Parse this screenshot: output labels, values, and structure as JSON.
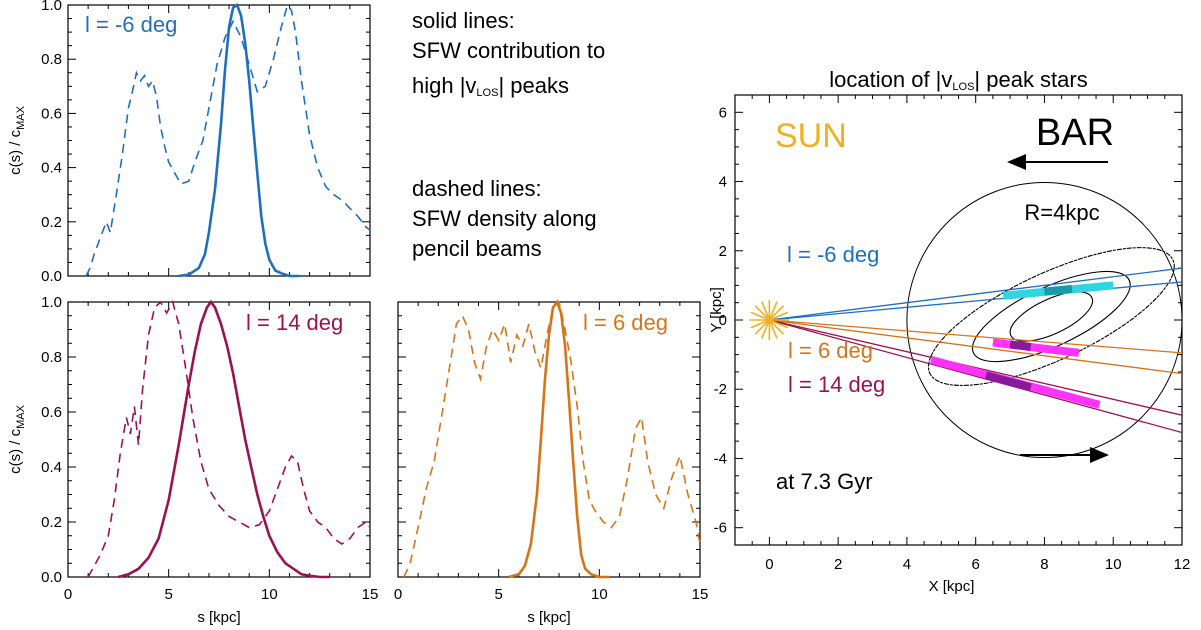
{
  "annotations": {
    "solid_title": "solid lines:",
    "solid_line2": "SFW contribution to",
    "solid_line3a": "high |v",
    "solid_line3sub": "LOS",
    "solid_line3b": "| peaks",
    "dashed_title": "dashed lines:",
    "dashed_line2": "SFW density along",
    "dashed_line3": "pencil beams"
  },
  "colors": {
    "blue": "#1f6fbf",
    "crimson": "#9b1250",
    "orange": "#d6741a",
    "sun": "#f0b020",
    "cyan": "#2fd6e0",
    "teal": "#1a9aa8",
    "magenta": "#ff33ff",
    "purple": "#8b1a9b"
  },
  "chart_data": [
    {
      "type": "line",
      "panel": "top-left",
      "label": "l = -6 deg",
      "xlabel": "",
      "ylabel": "c(s) / c_MAX",
      "xlim": [
        0,
        15
      ],
      "ylim": [
        0,
        1
      ],
      "yticks": [
        "0.0",
        "0.2",
        "0.4",
        "0.6",
        "0.8",
        "1.0"
      ],
      "series": [
        {
          "style": "dashed",
          "x": [
            0.9,
            1.1,
            1.3,
            1.6,
            1.9,
            2.1,
            2.4,
            2.7,
            3.0,
            3.2,
            3.4,
            3.6,
            3.8,
            4.0,
            4.2,
            4.4,
            4.6,
            4.8,
            5.0,
            5.3,
            5.6,
            6.0,
            6.3,
            6.7,
            7.0,
            7.4,
            7.8,
            8.2,
            8.6,
            9.0,
            9.4,
            9.8,
            10.2,
            10.6,
            10.9,
            11.1,
            11.3,
            11.6,
            12.0,
            12.4,
            12.8,
            13.2,
            13.6,
            14.0,
            14.4,
            14.8,
            15.0
          ],
          "y": [
            0.0,
            0.03,
            0.08,
            0.14,
            0.2,
            0.16,
            0.3,
            0.45,
            0.62,
            0.68,
            0.75,
            0.72,
            0.74,
            0.7,
            0.72,
            0.66,
            0.55,
            0.48,
            0.42,
            0.38,
            0.34,
            0.35,
            0.42,
            0.5,
            0.62,
            0.78,
            0.88,
            0.94,
            0.88,
            0.78,
            0.68,
            0.7,
            0.8,
            0.92,
            1.0,
            0.98,
            0.9,
            0.72,
            0.52,
            0.4,
            0.33,
            0.3,
            0.28,
            0.25,
            0.22,
            0.18,
            0.17
          ]
        },
        {
          "style": "solid",
          "x": [
            5.5,
            6.0,
            6.5,
            6.8,
            7.0,
            7.3,
            7.6,
            7.8,
            8.0,
            8.2,
            8.4,
            8.6,
            8.8,
            9.0,
            9.2,
            9.4,
            9.6,
            9.8,
            10.0,
            10.3,
            10.6,
            11.0,
            11.5
          ],
          "y": [
            0.0,
            0.005,
            0.03,
            0.08,
            0.16,
            0.32,
            0.56,
            0.76,
            0.92,
            0.99,
            1.0,
            0.96,
            0.86,
            0.72,
            0.55,
            0.38,
            0.22,
            0.12,
            0.06,
            0.02,
            0.01,
            0.0,
            0.0
          ]
        }
      ]
    },
    {
      "type": "line",
      "panel": "bottom-left",
      "label": "l = 14 deg",
      "xlabel": "s [kpc]",
      "ylabel": "c(s) / c_MAX",
      "xlim": [
        0,
        15
      ],
      "ylim": [
        0,
        1
      ],
      "xticks": [
        "0",
        "5",
        "10",
        "15"
      ],
      "yticks": [
        "0.0",
        "0.2",
        "0.4",
        "0.6",
        "0.8",
        "1.0"
      ],
      "series": [
        {
          "style": "dashed",
          "x": [
            1.0,
            1.3,
            1.6,
            2.0,
            2.3,
            2.6,
            2.9,
            3.1,
            3.3,
            3.5,
            3.7,
            4.0,
            4.3,
            4.6,
            4.9,
            5.2,
            5.5,
            5.8,
            6.2,
            6.6,
            7.0,
            7.5,
            8.0,
            8.5,
            9.0,
            9.5,
            10.0,
            10.4,
            10.8,
            11.1,
            11.4,
            11.7,
            12.0,
            12.4,
            12.8,
            13.2,
            13.6,
            14.0,
            14.4,
            14.8,
            15.0
          ],
          "y": [
            0.0,
            0.04,
            0.08,
            0.15,
            0.28,
            0.45,
            0.58,
            0.52,
            0.62,
            0.48,
            0.68,
            0.88,
            0.98,
            1.0,
            0.96,
            1.0,
            0.92,
            0.78,
            0.58,
            0.42,
            0.32,
            0.26,
            0.22,
            0.2,
            0.18,
            0.19,
            0.24,
            0.32,
            0.4,
            0.44,
            0.42,
            0.32,
            0.24,
            0.2,
            0.18,
            0.14,
            0.12,
            0.14,
            0.18,
            0.2,
            0.18
          ]
        },
        {
          "style": "solid",
          "x": [
            2.5,
            3.0,
            3.5,
            4.0,
            4.5,
            5.0,
            5.5,
            6.0,
            6.3,
            6.6,
            6.9,
            7.1,
            7.3,
            7.6,
            7.9,
            8.2,
            8.5,
            8.8,
            9.1,
            9.4,
            9.7,
            10.0,
            10.4,
            10.8,
            11.2,
            11.6,
            12.0,
            12.5,
            13.0
          ],
          "y": [
            0.0,
            0.01,
            0.03,
            0.07,
            0.14,
            0.28,
            0.48,
            0.7,
            0.82,
            0.92,
            0.98,
            1.0,
            0.98,
            0.92,
            0.84,
            0.74,
            0.62,
            0.5,
            0.4,
            0.3,
            0.22,
            0.15,
            0.09,
            0.05,
            0.03,
            0.01,
            0.005,
            0.0,
            0.0
          ]
        }
      ]
    },
    {
      "type": "line",
      "panel": "bottom-middle",
      "label": "l = 6 deg",
      "xlabel": "s [kpc]",
      "ylabel": "",
      "xlim": [
        0,
        15
      ],
      "ylim": [
        0,
        1
      ],
      "xticks": [
        "0",
        "5",
        "10",
        "15"
      ],
      "series": [
        {
          "style": "dashed",
          "x": [
            0.3,
            0.6,
            1.0,
            1.4,
            1.8,
            2.2,
            2.6,
            2.9,
            3.2,
            3.5,
            3.8,
            4.1,
            4.4,
            4.7,
            5.0,
            5.3,
            5.6,
            5.9,
            6.2,
            6.5,
            6.8,
            7.1,
            7.4,
            7.7,
            8.0,
            8.3,
            8.6,
            8.9,
            9.2,
            9.5,
            9.8,
            10.2,
            10.6,
            11.0,
            11.4,
            11.8,
            12.1,
            12.4,
            12.8,
            13.2,
            13.6,
            14.0,
            14.4,
            14.8,
            15.0
          ],
          "y": [
            0.0,
            0.05,
            0.18,
            0.32,
            0.42,
            0.6,
            0.78,
            0.92,
            0.95,
            0.9,
            0.78,
            0.72,
            0.84,
            0.9,
            0.86,
            0.92,
            0.78,
            0.88,
            0.84,
            0.92,
            0.82,
            0.76,
            0.88,
            0.98,
            1.0,
            0.9,
            0.78,
            0.62,
            0.42,
            0.28,
            0.24,
            0.2,
            0.18,
            0.22,
            0.36,
            0.54,
            0.58,
            0.42,
            0.3,
            0.25,
            0.36,
            0.44,
            0.3,
            0.2,
            0.12
          ]
        },
        {
          "style": "solid",
          "x": [
            5.5,
            6.0,
            6.3,
            6.6,
            6.9,
            7.1,
            7.3,
            7.5,
            7.7,
            7.9,
            8.1,
            8.3,
            8.5,
            8.7,
            8.9,
            9.1,
            9.3,
            9.6,
            10.0,
            10.5
          ],
          "y": [
            0.0,
            0.01,
            0.04,
            0.12,
            0.3,
            0.5,
            0.72,
            0.88,
            0.98,
            1.0,
            0.96,
            0.84,
            0.64,
            0.42,
            0.22,
            0.08,
            0.03,
            0.01,
            0.0,
            0.0
          ]
        }
      ]
    },
    {
      "type": "scatter",
      "panel": "right",
      "title_a": "location of |v",
      "title_sub": "LOS",
      "title_b": "| peak stars",
      "xlabel": "X [kpc]",
      "ylabel": "Y [kpc]",
      "xlim": [
        -1,
        12
      ],
      "ylim": [
        -6.5,
        6.5
      ],
      "xticks": [
        "0",
        "2",
        "4",
        "6",
        "8",
        "10",
        "12"
      ],
      "yticks": [
        "-6",
        "-4",
        "-2",
        "0",
        "2",
        "4",
        "6"
      ],
      "sun_label": "SUN",
      "bar_label": "BAR",
      "radius_label": "R=4kpc",
      "time_label": "at 7.3 Gyr",
      "circle": {
        "cx": 8,
        "cy": 0,
        "r": 4
      },
      "beams": [
        {
          "label": "l = -6 deg",
          "color": "blue",
          "lines": [
            [
              0,
              0,
              12,
              1.5
            ],
            [
              0,
              0,
              12,
              1.1
            ]
          ],
          "segment": [
            6.8,
            0.7,
            10.0,
            1.0
          ],
          "segment_color": "cyan",
          "core": [
            8.0,
            0.82,
            8.8,
            0.9
          ],
          "core_color": "teal"
        },
        {
          "label": "l = 6 deg",
          "color": "orange",
          "lines": [
            [
              0,
              0,
              12,
              -0.95
            ],
            [
              0,
              0,
              12,
              -1.55
            ]
          ],
          "segment": [
            6.5,
            -0.65,
            9.0,
            -0.95
          ],
          "segment_color": "magenta",
          "core": [
            7.0,
            -0.7,
            7.6,
            -0.78
          ],
          "core_color": "purple"
        },
        {
          "label": "l = 14 deg",
          "color": "crimson",
          "lines": [
            [
              0,
              0,
              12,
              -2.75
            ],
            [
              0,
              0,
              12,
              -3.25
            ]
          ],
          "segment": [
            4.7,
            -1.15,
            9.6,
            -2.45
          ],
          "segment_color": "magenta",
          "core": [
            6.3,
            -1.6,
            7.6,
            -1.95
          ],
          "core_color": "purple"
        }
      ]
    }
  ]
}
